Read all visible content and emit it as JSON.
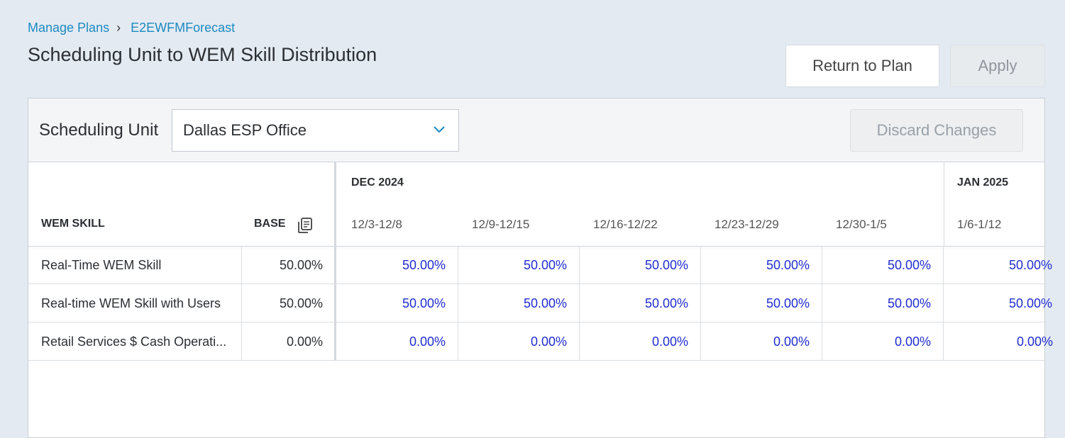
{
  "breadcrumb": {
    "parent": "Manage Plans",
    "separator": "›",
    "current": "E2EWFMForecast"
  },
  "page": {
    "title": "Scheduling Unit to WEM Skill Distribution"
  },
  "actions": {
    "return_label": "Return to Plan",
    "apply_label": "Apply",
    "discard_label": "Discard Changes"
  },
  "scheduling_unit": {
    "label": "Scheduling Unit",
    "value": "Dallas ESP Office"
  },
  "table": {
    "headers": {
      "skill": "WEM SKILL",
      "base": "BASE"
    },
    "months": [
      {
        "label": "DEC 2024"
      },
      {
        "label": "JAN 2025"
      }
    ],
    "weeks": [
      "12/3-12/8",
      "12/9-12/15",
      "12/16-12/22",
      "12/23-12/29",
      "12/30-1/5",
      "1/6-1/12"
    ],
    "rows": [
      {
        "name": "Real-Time WEM Skill",
        "base": "50.00%",
        "values": [
          "50.00%",
          "50.00%",
          "50.00%",
          "50.00%",
          "50.00%",
          "50.00%"
        ]
      },
      {
        "name": "Real-time WEM Skill with Users",
        "base": "50.00%",
        "values": [
          "50.00%",
          "50.00%",
          "50.00%",
          "50.00%",
          "50.00%",
          "50.00%"
        ]
      },
      {
        "name": "Retail Services $ Cash Operati...",
        "base": "0.00%",
        "values": [
          "0.00%",
          "0.00%",
          "0.00%",
          "0.00%",
          "0.00%",
          "0.00%"
        ]
      }
    ]
  },
  "colors": {
    "link": "#1b8ac0",
    "value": "#1f2ccf",
    "background": "#e4eaf2"
  }
}
